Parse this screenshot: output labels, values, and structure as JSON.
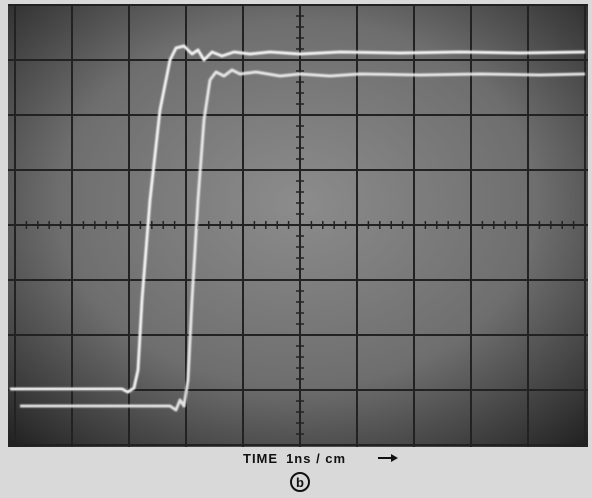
{
  "caption": {
    "axis_label": "TIME",
    "unit": "1ns / cm",
    "panel": "b"
  }
}
